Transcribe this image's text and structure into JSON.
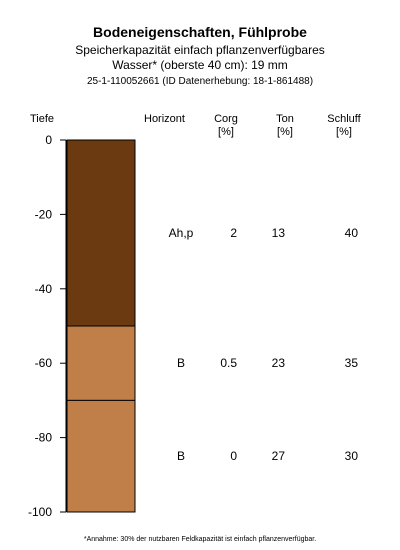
{
  "header": {
    "title": "Bodeneigenschaften, Fühlprobe",
    "subtitle_line1": "Speicherkapazität einfach pflanzenverfügbares",
    "subtitle_line2": "Wasser* (oberste 40 cm): 19 mm",
    "id_line": "25-1-110052661 (ID Datenerhebung: 18-1-861488)"
  },
  "columns": {
    "depth": "Tiefe",
    "horizon": "Horizont",
    "corg": "Corg",
    "corg_unit": "[%]",
    "ton": "Ton",
    "ton_unit": "[%]",
    "schluff": "Schluff",
    "schluff_unit": "[%]"
  },
  "footnote": "*Annahme: 30% der nutzbaren Feldkapazität ist einfach pflanzenverfügbar.",
  "chart_data": {
    "type": "bar",
    "ylabel": "Tiefe",
    "ylim": [
      -100,
      0
    ],
    "y_ticks": [
      "0",
      "-20",
      "-40",
      "-60",
      "-80",
      "-100"
    ],
    "layers": [
      {
        "top": 0,
        "bottom": -50,
        "horizon": "Ah,p",
        "corg": "2",
        "ton": "13",
        "schluff": "40",
        "color": "#6b3a10"
      },
      {
        "top": -50,
        "bottom": -70,
        "horizon": "B",
        "corg": "0.5",
        "ton": "23",
        "schluff": "35",
        "color": "#c07f48"
      },
      {
        "top": -70,
        "bottom": -100,
        "horizon": "B",
        "corg": "0",
        "ton": "27",
        "schluff": "30",
        "color": "#c07f48"
      }
    ]
  }
}
